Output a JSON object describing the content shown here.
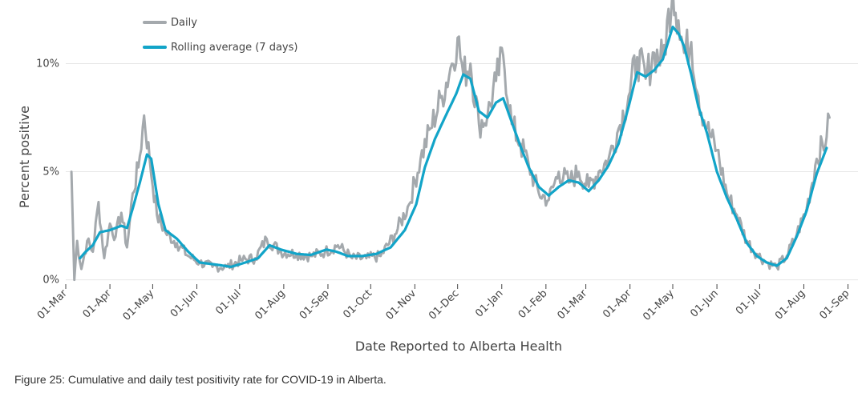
{
  "figure": {
    "caption": "Figure 25: Cumulative and daily test positivity rate for COVID-19 in Alberta."
  },
  "chart_data": {
    "type": "line",
    "xlabel": "Date Reported to Alberta Health",
    "ylabel": "Percent positive",
    "x_tick_labels": [
      "01-Mar",
      "01-Apr",
      "01-May",
      "01-Jun",
      "01-Jul",
      "01-Aug",
      "01-Sep",
      "01-Oct",
      "01-Nov",
      "01-Dec",
      "01-Jan",
      "01-Feb",
      "01-Mar",
      "01-Apr",
      "01-May",
      "01-Jun",
      "01-Jul",
      "01-Aug",
      "01-Sep"
    ],
    "x_range": [
      "2020-03-01",
      "2021-09-08"
    ],
    "y_ticks": [
      {
        "value": 0,
        "label": "0%"
      },
      {
        "value": 5,
        "label": "5%"
      },
      {
        "value": 10,
        "label": "10%"
      }
    ],
    "ylim": [
      -0.2,
      12.5
    ],
    "grid": "horizontal",
    "legend_position": "top-left",
    "colors": {
      "daily": "#a4a9ad",
      "rolling": "#12a4c8",
      "grid": "#e6e6e6"
    },
    "series": [
      {
        "name": "Daily",
        "anchors": [
          [
            "2020-03-05",
            5.0
          ],
          [
            "2020-03-07",
            0.0
          ],
          [
            "2020-03-09",
            1.8
          ],
          [
            "2020-03-12",
            0.5
          ],
          [
            "2020-03-16",
            1.8
          ],
          [
            "2020-03-20",
            1.3
          ],
          [
            "2020-03-24",
            3.6
          ],
          [
            "2020-03-28",
            1.0
          ],
          [
            "2020-04-01",
            2.6
          ],
          [
            "2020-04-05",
            2.0
          ],
          [
            "2020-04-09",
            3.1
          ],
          [
            "2020-04-13",
            1.5
          ],
          [
            "2020-04-17",
            4.0
          ],
          [
            "2020-04-21",
            5.2
          ],
          [
            "2020-04-25",
            7.6
          ],
          [
            "2020-04-29",
            5.5
          ],
          [
            "2020-05-04",
            3.0
          ],
          [
            "2020-05-10",
            2.2
          ],
          [
            "2020-05-18",
            1.7
          ],
          [
            "2020-05-26",
            1.1
          ],
          [
            "2020-06-03",
            0.8
          ],
          [
            "2020-06-12",
            0.6
          ],
          [
            "2020-06-22",
            0.6
          ],
          [
            "2020-07-02",
            0.9
          ],
          [
            "2020-07-12",
            1.0
          ],
          [
            "2020-07-20",
            1.9
          ],
          [
            "2020-07-30",
            1.3
          ],
          [
            "2020-08-10",
            1.2
          ],
          [
            "2020-08-20",
            1.1
          ],
          [
            "2020-08-30",
            1.3
          ],
          [
            "2020-09-08",
            1.6
          ],
          [
            "2020-09-18",
            1.0
          ],
          [
            "2020-09-28",
            1.0
          ],
          [
            "2020-10-08",
            1.1
          ],
          [
            "2020-10-18",
            2.1
          ],
          [
            "2020-10-28",
            3.5
          ],
          [
            "2020-11-05",
            5.6
          ],
          [
            "2020-11-12",
            7.0
          ],
          [
            "2020-11-20",
            8.5
          ],
          [
            "2020-11-27",
            10.0
          ],
          [
            "2020-12-01",
            11.2
          ],
          [
            "2020-12-05",
            9.5
          ],
          [
            "2020-12-10",
            10.0
          ],
          [
            "2020-12-16",
            7.2
          ],
          [
            "2020-12-22",
            7.6
          ],
          [
            "2020-12-28",
            9.2
          ],
          [
            "2021-01-02",
            10.4
          ],
          [
            "2021-01-08",
            7.2
          ],
          [
            "2021-01-14",
            6.3
          ],
          [
            "2021-01-20",
            5.3
          ],
          [
            "2021-01-27",
            4.0
          ],
          [
            "2021-02-03",
            3.7
          ],
          [
            "2021-02-10",
            5.0
          ],
          [
            "2021-02-17",
            4.5
          ],
          [
            "2021-02-24",
            5.0
          ],
          [
            "2021-03-03",
            4.3
          ],
          [
            "2021-03-10",
            5.0
          ],
          [
            "2021-03-17",
            5.6
          ],
          [
            "2021-03-24",
            7.0
          ],
          [
            "2021-03-31",
            8.5
          ],
          [
            "2021-04-06",
            10.3
          ],
          [
            "2021-04-12",
            9.3
          ],
          [
            "2021-04-18",
            10.5
          ],
          [
            "2021-04-24",
            10.2
          ],
          [
            "2021-05-01",
            13.5
          ],
          [
            "2021-05-05",
            12.0
          ],
          [
            "2021-05-09",
            10.5
          ],
          [
            "2021-05-14",
            11.0
          ],
          [
            "2021-05-19",
            8.5
          ],
          [
            "2021-05-25",
            7.0
          ],
          [
            "2021-06-01",
            6.0
          ],
          [
            "2021-06-08",
            4.0
          ],
          [
            "2021-06-15",
            3.0
          ],
          [
            "2021-06-22",
            1.8
          ],
          [
            "2021-06-29",
            1.2
          ],
          [
            "2021-07-06",
            0.8
          ],
          [
            "2021-07-13",
            0.6
          ],
          [
            "2021-07-20",
            1.1
          ],
          [
            "2021-07-27",
            2.1
          ],
          [
            "2021-08-03",
            3.3
          ],
          [
            "2021-08-10",
            5.6
          ],
          [
            "2021-08-17",
            6.6
          ],
          [
            "2021-08-19",
            7.5
          ]
        ]
      },
      {
        "name": "Rolling average (7 days)",
        "anchors": [
          [
            "2020-03-11",
            1.0
          ],
          [
            "2020-03-15",
            1.3
          ],
          [
            "2020-03-20",
            1.6
          ],
          [
            "2020-03-25",
            2.2
          ],
          [
            "2020-04-01",
            2.3
          ],
          [
            "2020-04-05",
            2.4
          ],
          [
            "2020-04-09",
            2.5
          ],
          [
            "2020-04-13",
            2.4
          ],
          [
            "2020-04-17",
            3.3
          ],
          [
            "2020-04-22",
            4.5
          ],
          [
            "2020-04-27",
            5.8
          ],
          [
            "2020-04-30",
            5.6
          ],
          [
            "2020-05-05",
            3.5
          ],
          [
            "2020-05-10",
            2.3
          ],
          [
            "2020-05-18",
            1.9
          ],
          [
            "2020-05-26",
            1.3
          ],
          [
            "2020-06-03",
            0.8
          ],
          [
            "2020-06-15",
            0.7
          ],
          [
            "2020-06-25",
            0.6
          ],
          [
            "2020-07-05",
            0.8
          ],
          [
            "2020-07-14",
            1.0
          ],
          [
            "2020-07-22",
            1.6
          ],
          [
            "2020-07-30",
            1.4
          ],
          [
            "2020-08-10",
            1.2
          ],
          [
            "2020-08-20",
            1.15
          ],
          [
            "2020-08-31",
            1.4
          ],
          [
            "2020-09-07",
            1.3
          ],
          [
            "2020-09-15",
            1.1
          ],
          [
            "2020-09-25",
            1.1
          ],
          [
            "2020-10-05",
            1.2
          ],
          [
            "2020-10-15",
            1.5
          ],
          [
            "2020-10-25",
            2.3
          ],
          [
            "2020-11-02",
            3.5
          ],
          [
            "2020-11-08",
            5.2
          ],
          [
            "2020-11-15",
            6.5
          ],
          [
            "2020-11-22",
            7.5
          ],
          [
            "2020-11-30",
            8.6
          ],
          [
            "2020-12-05",
            9.5
          ],
          [
            "2020-12-10",
            9.3
          ],
          [
            "2020-12-16",
            7.8
          ],
          [
            "2020-12-22",
            7.5
          ],
          [
            "2020-12-28",
            8.2
          ],
          [
            "2021-01-02",
            8.4
          ],
          [
            "2021-01-08",
            7.3
          ],
          [
            "2021-01-14",
            6.2
          ],
          [
            "2021-01-20",
            5.2
          ],
          [
            "2021-01-27",
            4.3
          ],
          [
            "2021-02-03",
            3.9
          ],
          [
            "2021-02-10",
            4.3
          ],
          [
            "2021-02-17",
            4.6
          ],
          [
            "2021-02-24",
            4.5
          ],
          [
            "2021-03-03",
            4.1
          ],
          [
            "2021-03-10",
            4.6
          ],
          [
            "2021-03-17",
            5.3
          ],
          [
            "2021-03-24",
            6.3
          ],
          [
            "2021-03-31",
            8.0
          ],
          [
            "2021-04-06",
            9.6
          ],
          [
            "2021-04-12",
            9.4
          ],
          [
            "2021-04-18",
            9.7
          ],
          [
            "2021-04-24",
            10.2
          ],
          [
            "2021-05-01",
            11.7
          ],
          [
            "2021-05-05",
            11.4
          ],
          [
            "2021-05-09",
            10.8
          ],
          [
            "2021-05-14",
            9.5
          ],
          [
            "2021-05-19",
            8.0
          ],
          [
            "2021-05-25",
            6.8
          ],
          [
            "2021-06-01",
            5.0
          ],
          [
            "2021-06-08",
            3.8
          ],
          [
            "2021-06-15",
            2.8
          ],
          [
            "2021-06-22",
            1.7
          ],
          [
            "2021-06-29",
            1.1
          ],
          [
            "2021-07-06",
            0.8
          ],
          [
            "2021-07-13",
            0.65
          ],
          [
            "2021-07-20",
            1.0
          ],
          [
            "2021-07-27",
            2.0
          ],
          [
            "2021-08-03",
            3.2
          ],
          [
            "2021-08-10",
            4.9
          ],
          [
            "2021-08-17",
            6.1
          ]
        ]
      }
    ]
  }
}
